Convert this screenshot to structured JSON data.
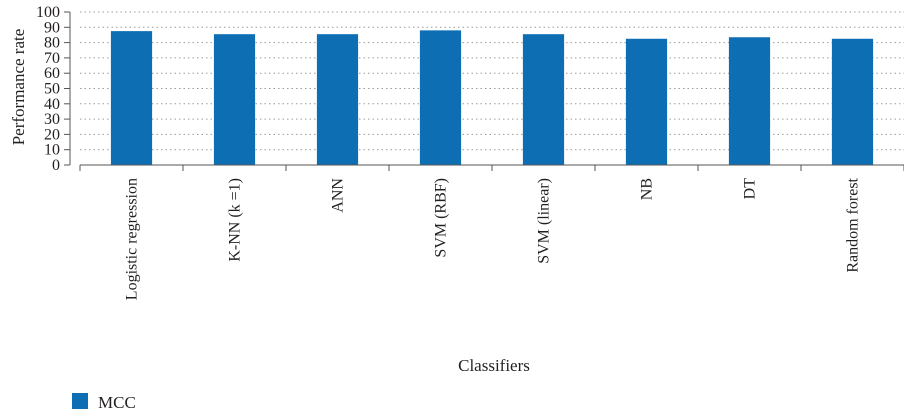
{
  "chart_data": {
    "type": "bar",
    "categories": [
      "Logistic regression",
      "K-NN (k =1)",
      "ANN",
      "SVM (RBF)",
      "SVM (linear)",
      "NB",
      "DT",
      "Random forest"
    ],
    "series": [
      {
        "name": "MCC",
        "values": [
          87.5,
          85.5,
          85.5,
          88,
          85.5,
          82.5,
          83.5,
          82.5
        ]
      }
    ],
    "title": "",
    "xlabel": "Classifiers",
    "ylabel": "Performance rate",
    "ylim": [
      0,
      100
    ],
    "yticks": [
      0,
      10,
      20,
      30,
      40,
      50,
      60,
      70,
      80,
      90,
      100
    ],
    "grid": true,
    "legend_position": "bottom-left",
    "colors": {
      "bar": "#0d6eb4",
      "grid": "#9a9a9a",
      "axis": "#555555"
    }
  }
}
